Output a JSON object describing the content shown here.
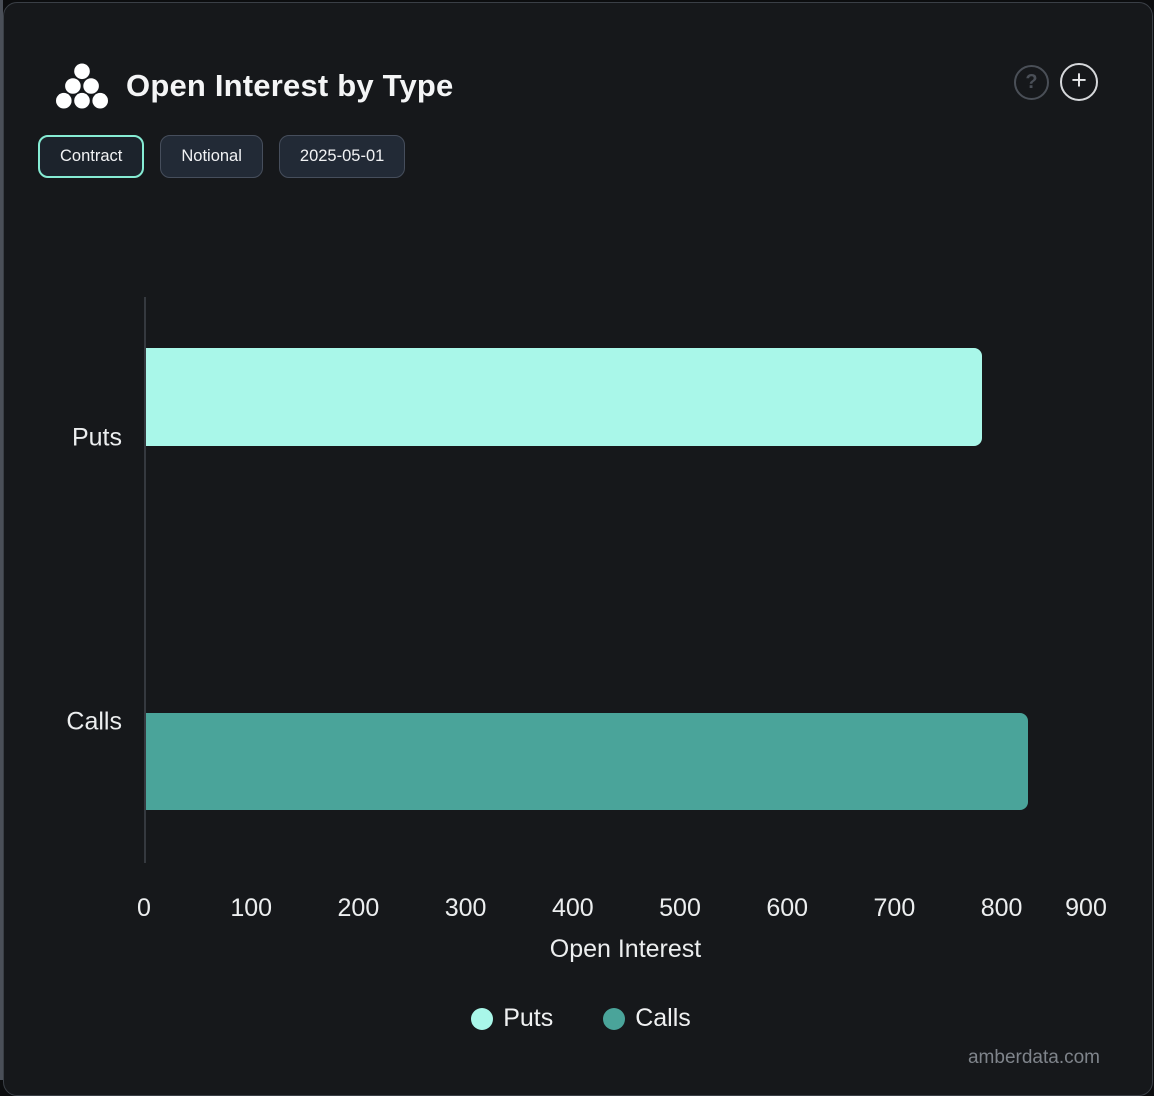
{
  "header": {
    "title": "Open Interest by Type",
    "help_glyph": "?",
    "add_glyph": "+"
  },
  "toolbar": {
    "buttons": [
      {
        "label": "Contract",
        "active": true
      },
      {
        "label": "Notional",
        "active": false
      },
      {
        "label": "2025-05-01",
        "active": false
      }
    ]
  },
  "chart_data": {
    "type": "bar",
    "orientation": "horizontal",
    "title": "Open Interest by Type",
    "categories": [
      "Puts",
      "Calls"
    ],
    "series": [
      {
        "name": "Puts",
        "color": "#a9f7e9",
        "value": 780
      },
      {
        "name": "Calls",
        "color": "#4aa49a",
        "value": 823
      }
    ],
    "xlabel": "Open Interest",
    "ylabel": "",
    "x_ticks": [
      0,
      100,
      200,
      300,
      400,
      500,
      600,
      700,
      800,
      900
    ],
    "xlim": [
      0,
      900
    ],
    "grid": false,
    "legend": [
      {
        "label": "Puts",
        "color": "#a9f7e9"
      },
      {
        "label": "Calls",
        "color": "#4aa49a"
      }
    ],
    "legend_position": "bottom"
  },
  "footer": {
    "watermark": "amberdata.com"
  },
  "colors": {
    "panel_background": "#16181b",
    "panel_border": "#3a3f46",
    "axis_line": "#35393f",
    "text_primary": "#f4f5f6",
    "text_muted": "#7f848b",
    "accent_active_border": "#86ecd4",
    "puts_bar": "#a9f7e9",
    "calls_bar": "#4aa49a"
  }
}
